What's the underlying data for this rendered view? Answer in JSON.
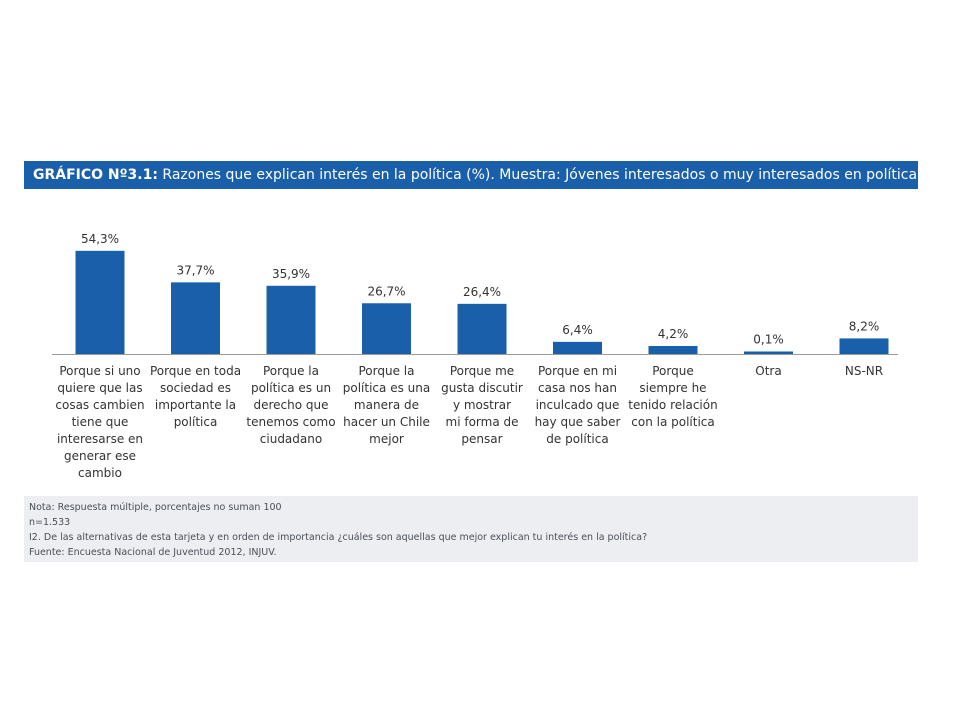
{
  "header": {
    "title_prefix": "GRÁFICO Nº3.1:",
    "title_text": "Razones que explican interés en la política (%). Muestra: Jóvenes interesados o muy interesados en política."
  },
  "chart_data": {
    "type": "bar",
    "categories": [
      "Porque si uno quiere que las cosas cambien tiene que interesarse en generar ese cambio",
      "Porque en toda sociedad es importante la política",
      "Porque la política es un derecho que tenemos como ciudadano",
      "Porque la política es una manera de hacer un Chile mejor",
      "Porque me gusta discutir y mostrar mi forma de pensar",
      "Porque en mi casa nos han inculcado que hay que saber de política",
      "Porque siempre he tenido relación con la política",
      "Otra",
      "NS-NR"
    ],
    "category_lines": [
      [
        "Porque si uno",
        "quiere que las",
        "cosas cambien",
        "tiene que",
        "interesarse en",
        "generar ese",
        "cambio"
      ],
      [
        "Porque en toda",
        "sociedad es",
        "importante la",
        "política"
      ],
      [
        "Porque la",
        "política es un",
        "derecho que",
        "tenemos como",
        "ciudadano"
      ],
      [
        "Porque la",
        "política es una",
        "manera de",
        "hacer un Chile",
        "mejor"
      ],
      [
        "Porque me",
        "gusta discutir",
        "y mostrar",
        "mi forma de",
        "pensar"
      ],
      [
        "Porque en mi",
        "casa nos han",
        "inculcado que",
        "hay que saber",
        "de política"
      ],
      [
        "Porque",
        "siempre he",
        "tenido relación",
        "con la política"
      ],
      [
        "Otra"
      ],
      [
        "NS-NR"
      ]
    ],
    "values": [
      54.3,
      37.7,
      35.9,
      26.7,
      26.4,
      6.4,
      4.2,
      0.1,
      8.2
    ],
    "value_labels": [
      "54,3%",
      "37,7%",
      "35,9%",
      "26,7%",
      "26,4%",
      "6,4%",
      "4,2%",
      "0,1%",
      "8,2%"
    ],
    "ylim": [
      0,
      60
    ],
    "bar_color": "#1a5faa",
    "grid": false,
    "legend": false
  },
  "notes": {
    "lines": [
      "Nota: Respuesta múltiple, porcentajes no suman 100",
      "n=1.533",
      "I2. De las alternativas de esta tarjeta y en orden de importancia ¿cuáles son aquellas que mejor explican tu interés en la política?",
      "Fuente: Encuesta Nacional de Juventud 2012, INJUV."
    ]
  },
  "colors": {
    "accent": "#1a5faa",
    "notes_background": "#eceef2",
    "text": "#333333"
  }
}
